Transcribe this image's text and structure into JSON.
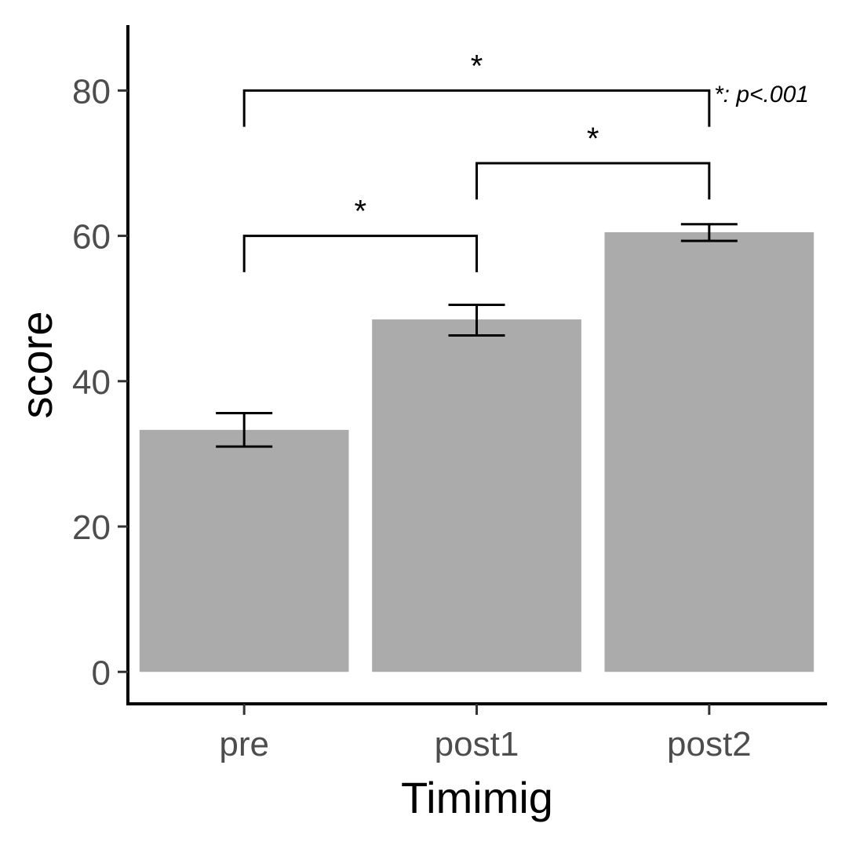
{
  "chart_data": {
    "type": "bar",
    "categories": [
      "pre",
      "post1",
      "post2"
    ],
    "values": [
      33.3,
      48.5,
      60.5
    ],
    "error": [
      {
        "low": 31.0,
        "high": 35.6
      },
      {
        "low": 46.3,
        "high": 50.5
      },
      {
        "low": 59.3,
        "high": 61.6
      }
    ],
    "xlabel": "Timimig",
    "ylabel": "score",
    "ylim": [
      -4.4,
      89
    ],
    "yticks": [
      "0",
      "20",
      "40",
      "60",
      "80"
    ],
    "bar_color": "#ababab",
    "grid": false,
    "comparisons": [
      {
        "from": "pre",
        "to": "post1",
        "y": 60,
        "drop_to": 55,
        "label": "*"
      },
      {
        "from": "post1",
        "to": "post2",
        "y": 70,
        "drop_to": 65,
        "label": "*"
      },
      {
        "from": "pre",
        "to": "post2",
        "y": 80,
        "drop_to": 75,
        "label": "*"
      }
    ],
    "annotation": "*: p<.001"
  }
}
